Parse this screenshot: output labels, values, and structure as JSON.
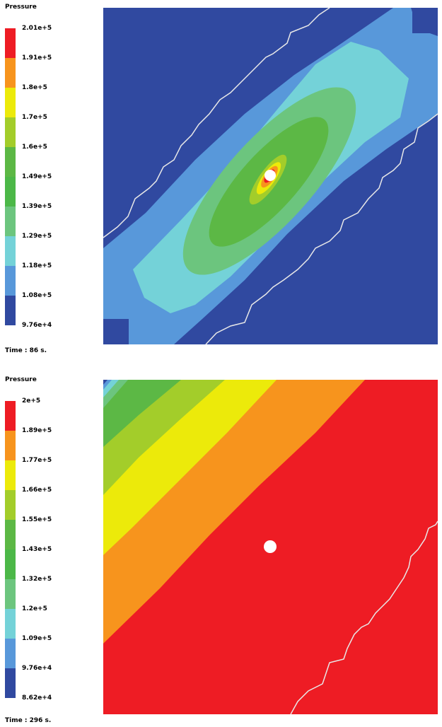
{
  "chart_data": [
    {
      "type": "heatmap",
      "title": "Pressure",
      "time_label": "Time : 86 s.",
      "legend_labels": [
        "2.01e+5",
        "1.91e+5",
        "1.8e+5",
        "1.7e+5",
        "1.6e+5",
        "1.49e+5",
        "1.39e+5",
        "1.29e+5",
        "1.18e+5",
        "1.08e+5",
        "9.76e+4"
      ],
      "legend_values": [
        201000,
        191000,
        180000,
        170000,
        160000,
        149000,
        139000,
        129000,
        118000,
        108000,
        97600
      ],
      "legend_colors": [
        "#ee1c24",
        "#f7941d",
        "#f2ef0c",
        "#a6cf2c",
        "#50b848",
        "#4bb848",
        "#6ac680",
        "#72d4d9",
        "#5596d8",
        "#2f51a3"
      ],
      "legend_colors_full": [
        "#ee1c24",
        "#f7941d",
        "#ecea0a",
        "#a3cd2a",
        "#5cb845",
        "#4cb848",
        "#6cc57e",
        "#74d2d8",
        "#5898da",
        "#3049a0"
      ],
      "field_colors": [
        "#3049a0",
        "#5898da",
        "#74d2d8",
        "#6cc57e",
        "#5cb845",
        "#a3cd2a",
        "#ecea0a",
        "#f7941d",
        "#ee1c24"
      ]
    },
    {
      "type": "heatmap",
      "title": "Pressure",
      "time_label": "Time : 296 s.",
      "legend_labels": [
        "2e+5",
        "1.89e+5",
        "1.77e+5",
        "1.66e+5",
        "1.55e+5",
        "1.43e+5",
        "1.32e+5",
        "1.2e+5",
        "1.09e+5",
        "9.76e+4",
        "8.62e+4"
      ],
      "legend_values": [
        200000,
        189000,
        177000,
        166000,
        155000,
        143000,
        132000,
        120000,
        109000,
        97600,
        86200
      ],
      "legend_colors_full": [
        "#ee1c24",
        "#f7941d",
        "#ecea0a",
        "#a3cd2a",
        "#5cb845",
        "#4cb848",
        "#6cc57e",
        "#74d2d8",
        "#5898da",
        "#3049a0"
      ],
      "field_colors": [
        "#3049a0",
        "#5898da",
        "#74d2d8",
        "#6cc57e",
        "#5cb845",
        "#a3cd2a",
        "#ecea0a",
        "#f7941d",
        "#ee1c24"
      ]
    }
  ]
}
